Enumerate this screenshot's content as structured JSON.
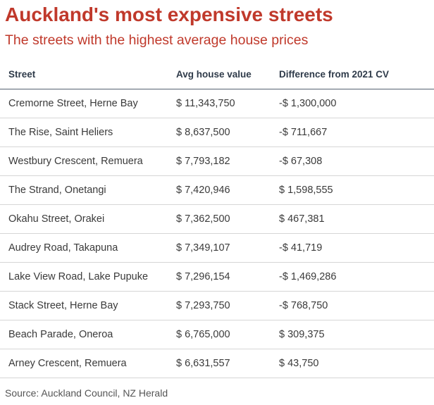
{
  "title": "Auckland's most expensive streets",
  "subtitle": "The streets with the highest average house prices",
  "table": {
    "headers": {
      "street": "Street",
      "value": "Avg house value",
      "diff": "Difference from 2021 CV"
    },
    "rows": [
      {
        "street": "Cremorne Street, Herne Bay",
        "value": "$ 11,343,750",
        "diff": "-$ 1,300,000"
      },
      {
        "street": "The Rise, Saint Heliers",
        "value": "$ 8,637,500",
        "diff": "-$ 711,667"
      },
      {
        "street": "Westbury Crescent, Remuera",
        "value": "$ 7,793,182",
        "diff": "-$ 67,308"
      },
      {
        "street": "The Strand, Onetangi",
        "value": "$ 7,420,946",
        "diff": "$ 1,598,555"
      },
      {
        "street": "Okahu Street, Orakei",
        "value": "$ 7,362,500",
        "diff": "$ 467,381"
      },
      {
        "street": "Audrey Road, Takapuna",
        "value": "$ 7,349,107",
        "diff": "-$ 41,719"
      },
      {
        "street": "Lake View Road, Lake Pupuke",
        "value": "$ 7,296,154",
        "diff": "-$ 1,469,286"
      },
      {
        "street": "Stack Street, Herne Bay",
        "value": "$ 7,293,750",
        "diff": "-$ 768,750"
      },
      {
        "street": "Beach Parade, Oneroa",
        "value": "$ 6,765,000",
        "diff": "$ 309,375"
      },
      {
        "street": "Arney Crescent, Remuera",
        "value": "$ 6,631,557",
        "diff": "$ 43,750"
      }
    ]
  },
  "source": "Source: Auckland Council, NZ Herald",
  "colors": {
    "title": "#c0392b",
    "header_rule": "#556070",
    "row_rule": "#d6d6d6"
  }
}
